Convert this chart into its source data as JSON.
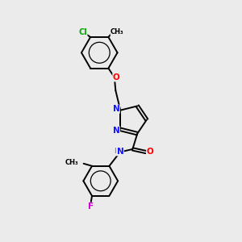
{
  "background_color": "#ebebeb",
  "atom_colors": {
    "C": "#000000",
    "N": "#1414ff",
    "O": "#ff0000",
    "Cl": "#00aa00",
    "F": "#cc00cc",
    "H": "#888888"
  },
  "bond_color": "#000000",
  "lw": 1.4
}
